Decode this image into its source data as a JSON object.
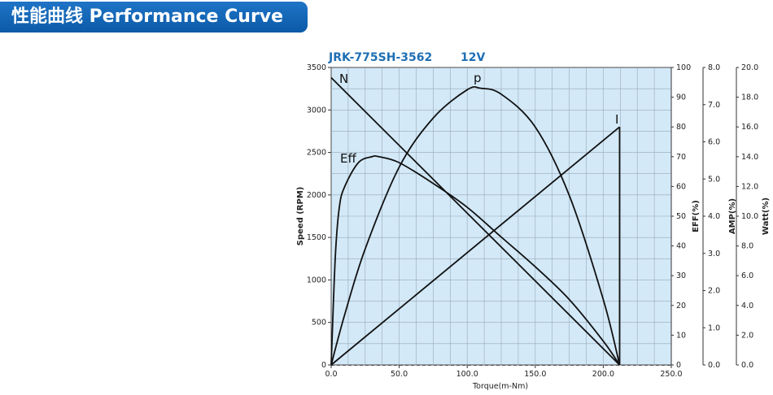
{
  "header": {
    "title": "性能曲线 Performance Curve"
  },
  "chart_data": {
    "type": "line",
    "model_label": "JRK-775SH-3562",
    "voltage_label": "12V",
    "xlabel": "Torque(m-Nm)",
    "xlim": [
      0,
      250
    ],
    "x_ticks": [
      "0.0",
      "50.0",
      "100.0",
      "150.0",
      "200.0",
      "250.0"
    ],
    "axes": {
      "speed": {
        "label": "Speed (RPM)",
        "lim": [
          0,
          3500
        ],
        "ticks": [
          "0",
          "500",
          "1000",
          "1500",
          "2000",
          "2500",
          "3000",
          "3500"
        ]
      },
      "eff": {
        "label": "EFF(%)",
        "lim": [
          0,
          100
        ],
        "ticks": [
          "0",
          "10",
          "20",
          "30",
          "40",
          "50",
          "60",
          "70",
          "80",
          "90",
          "100"
        ]
      },
      "amp": {
        "label": "AMP(%)",
        "lim": [
          0,
          8
        ],
        "ticks": [
          "0.0",
          "1.0",
          "2.0",
          "3.0",
          "4.0",
          "5.0",
          "6.0",
          "7.0",
          "8.0"
        ]
      },
      "watt": {
        "label": "Watt(%)",
        "lim": [
          0,
          20
        ],
        "ticks": [
          "0.0",
          "2.0",
          "4.0",
          "6.0",
          "8.0",
          "10.0",
          "12.0",
          "14.0",
          "16.0",
          "18.0",
          "20.0"
        ]
      }
    },
    "grid": true,
    "series": [
      {
        "name": "N",
        "axis": "speed",
        "x": [
          0,
          212
        ],
        "y": [
          3380,
          0
        ]
      },
      {
        "name": "I",
        "axis": "amp",
        "x": [
          0,
          212
        ],
        "y": [
          0,
          6.4
        ]
      },
      {
        "name": "p",
        "axis": "watt",
        "x": [
          0,
          10,
          25,
          50,
          75,
          100,
          110,
          125,
          150,
          175,
          200,
          212
        ],
        "y": [
          0,
          3.4,
          7.8,
          13.3,
          16.6,
          18.5,
          18.6,
          18.2,
          16.0,
          11.4,
          4.4,
          0
        ]
      },
      {
        "name": "Eff",
        "axis": "eff",
        "x": [
          0,
          3,
          6,
          10,
          20,
          30,
          35,
          50,
          75,
          100,
          125,
          150,
          175,
          200,
          212
        ],
        "y": [
          0,
          36,
          53,
          60,
          68,
          70,
          70,
          68,
          61,
          53,
          43,
          33,
          22,
          8,
          0
        ]
      }
    ]
  }
}
